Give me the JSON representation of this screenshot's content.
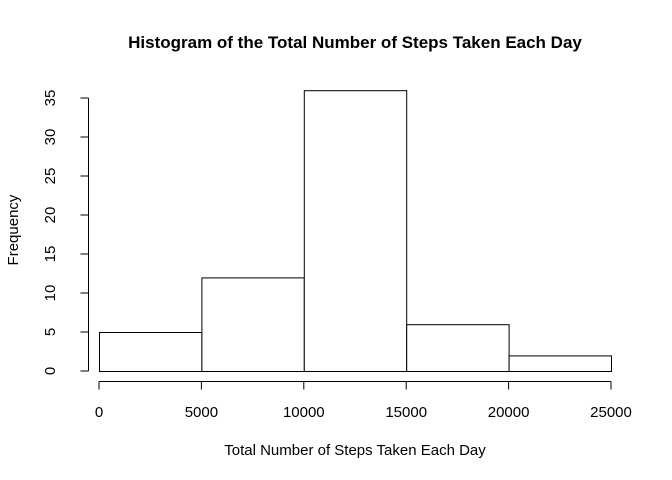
{
  "chart_data": {
    "type": "bar",
    "title": "Histogram of the Total Number of Steps Taken Each Day",
    "xlabel": "Total Number of Steps Taken Each Day",
    "ylabel": "Frequency",
    "bins": [
      {
        "start": 0,
        "end": 5000,
        "count": 5
      },
      {
        "start": 5000,
        "end": 10000,
        "count": 12
      },
      {
        "start": 10000,
        "end": 15000,
        "count": 36
      },
      {
        "start": 15000,
        "end": 20000,
        "count": 6
      },
      {
        "start": 20000,
        "end": 25000,
        "count": 2
      }
    ],
    "xlim": [
      0,
      25000
    ],
    "ylim": [
      0,
      35
    ],
    "x_ticks": [
      0,
      5000,
      10000,
      15000,
      20000,
      25000
    ],
    "y_ticks": [
      0,
      5,
      10,
      15,
      20,
      25,
      30,
      35
    ],
    "x_tick_labels": [
      "0",
      "5000",
      "10000",
      "15000",
      "20000",
      "25000"
    ],
    "y_tick_labels": [
      "0",
      "5",
      "10",
      "15",
      "20",
      "25",
      "30",
      "35"
    ],
    "grid": false,
    "legend": "none"
  }
}
